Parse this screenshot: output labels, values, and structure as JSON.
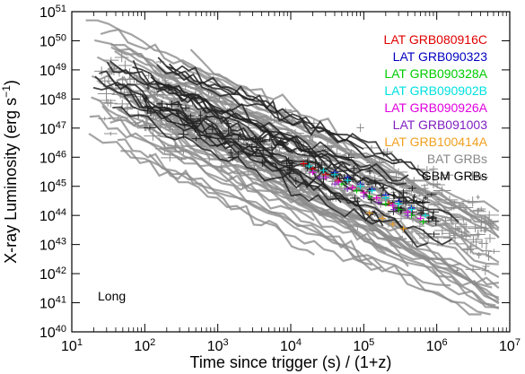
{
  "chart_data": {
    "type": "scatter",
    "xlabel": "Time since trigger (s) / (1+z)",
    "ylabel_main": "X-ray Luminosity (erg s",
    "ylabel_exp": "−1",
    "ylabel_close": ")",
    "x_scale": "log",
    "y_scale": "log",
    "xlim": [
      10,
      10000000
    ],
    "ylim": [
      1e+40,
      1e+51
    ],
    "x_ticks": [
      {
        "value": 10,
        "base": "10",
        "exp": "1"
      },
      {
        "value": 100,
        "base": "10",
        "exp": "2"
      },
      {
        "value": 1000,
        "base": "10",
        "exp": "3"
      },
      {
        "value": 10000,
        "base": "10",
        "exp": "4"
      },
      {
        "value": 100000,
        "base": "10",
        "exp": "5"
      },
      {
        "value": 1000000,
        "base": "10",
        "exp": "6"
      },
      {
        "value": 10000000,
        "base": "10",
        "exp": "7"
      }
    ],
    "y_ticks": [
      {
        "value": 1e+40,
        "base": "10",
        "exp": "40"
      },
      {
        "value": 1e+41,
        "base": "10",
        "exp": "41"
      },
      {
        "value": 1e+42,
        "base": "10",
        "exp": "42"
      },
      {
        "value": 1e+43,
        "base": "10",
        "exp": "43"
      },
      {
        "value": 1e+44,
        "base": "10",
        "exp": "44"
      },
      {
        "value": 1e+45,
        "base": "10",
        "exp": "45"
      },
      {
        "value": 1e+46,
        "base": "10",
        "exp": "46"
      },
      {
        "value": 1e+47,
        "base": "10",
        "exp": "47"
      },
      {
        "value": 1e+48,
        "base": "10",
        "exp": "48"
      },
      {
        "value": 1e+49,
        "base": "10",
        "exp": "49"
      },
      {
        "value": 1e+50,
        "base": "10",
        "exp": "50"
      },
      {
        "value": 1e+51,
        "base": "10",
        "exp": "51"
      }
    ],
    "annotation": "Long",
    "annotation_position": "bottom-left",
    "legend_position": "top-right",
    "grid": false,
    "series": [
      {
        "name": "LAT GRB080916C",
        "color": "#e00000",
        "points": [
          [
            15000,
            6e+45
          ],
          [
            20000,
            4e+45
          ],
          [
            30000,
            2.5e+45
          ],
          [
            45000,
            1.6e+45
          ],
          [
            70000,
            9e+44
          ],
          [
            100000,
            6e+44
          ],
          [
            150000,
            4e+44
          ],
          [
            220000,
            2.6e+44
          ]
        ]
      },
      {
        "name": "LAT GRB090323",
        "color": "#0000c0",
        "points": [
          [
            40000,
            3e+45
          ],
          [
            60000,
            2e+45
          ],
          [
            90000,
            1.2e+45
          ],
          [
            130000,
            8e+44
          ],
          [
            200000,
            5e+44
          ],
          [
            300000,
            3e+44
          ],
          [
            450000,
            1.8e+44
          ]
        ]
      },
      {
        "name": "LAT GRB090328A",
        "color": "#00cc00",
        "points": [
          [
            30000,
            2e+45
          ],
          [
            50000,
            1.2e+45
          ],
          [
            80000,
            7e+44
          ],
          [
            120000,
            4.5e+44
          ],
          [
            200000,
            2.5e+44
          ],
          [
            300000,
            1.6e+44
          ],
          [
            450000,
            1e+44
          ],
          [
            650000,
            6e+43
          ]
        ]
      },
      {
        "name": "LAT GRB090902B",
        "color": "#00e0e0",
        "points": [
          [
            18000,
            5e+45
          ],
          [
            28000,
            3.5e+45
          ],
          [
            40000,
            2.5e+45
          ],
          [
            60000,
            1.6e+45
          ],
          [
            90000,
            1e+45
          ],
          [
            130000,
            7e+44
          ],
          [
            200000,
            4e+44
          ],
          [
            300000,
            2.5e+44
          ],
          [
            450000,
            1.6e+44
          ],
          [
            700000,
            1e+44
          ]
        ]
      },
      {
        "name": "LAT GRB090926A",
        "color": "#e000e0",
        "points": [
          [
            20000,
            3e+45
          ],
          [
            30000,
            2e+45
          ],
          [
            45000,
            1.4e+45
          ],
          [
            70000,
            9e+44
          ],
          [
            100000,
            6e+44
          ],
          [
            150000,
            4e+44
          ],
          [
            250000,
            2.2e+44
          ],
          [
            400000,
            1.3e+44
          ],
          [
            600000,
            8e+43
          ]
        ]
      },
      {
        "name": "LAT GRB091003",
        "color": "#8020c0",
        "points": [
          [
            25000,
            2e+45
          ],
          [
            40000,
            1.2e+45
          ],
          [
            60000,
            8e+44
          ],
          [
            100000,
            4.5e+44
          ],
          [
            160000,
            2.8e+44
          ],
          [
            260000,
            1.6e+44
          ],
          [
            400000,
            1e+44
          ]
        ]
      },
      {
        "name": "LAT GRB100414A",
        "color": "#f0a020",
        "points": [
          [
            120000,
            1.2e+44
          ],
          [
            180000,
            8e+43
          ],
          [
            250000,
            5e+43
          ],
          [
            350000,
            3.5e+43
          ]
        ]
      },
      {
        "name": "BAT GRBs",
        "color": "#888888",
        "points": []
      },
      {
        "name": "GBM GRBs",
        "color": "#000000",
        "points": []
      }
    ]
  }
}
